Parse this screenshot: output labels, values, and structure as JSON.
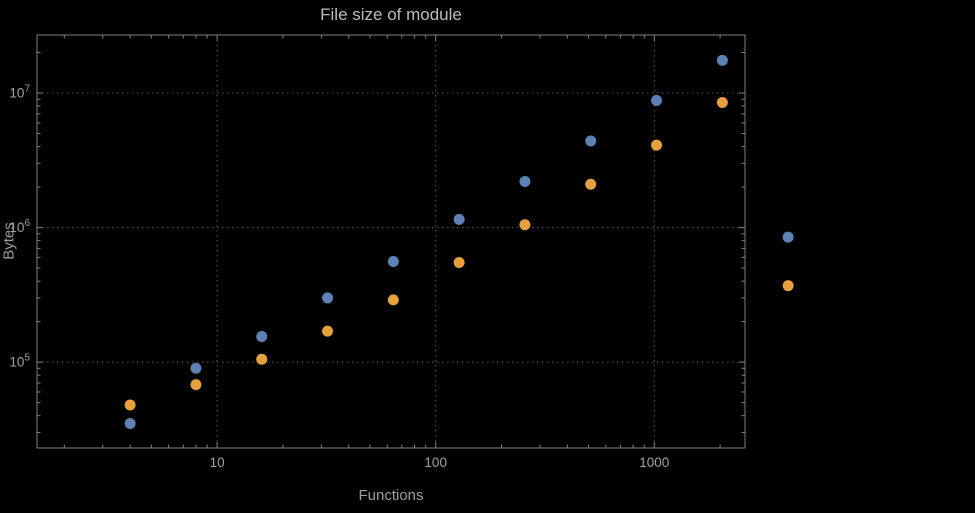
{
  "page": {
    "background_color": "#000000"
  },
  "chart_data": {
    "type": "scatter",
    "title": "File size of module",
    "xlabel": "Functions",
    "ylabel": "Bytes",
    "x_scale": "log",
    "y_scale": "log",
    "grid": "dotted",
    "legend": "none",
    "frame": true,
    "xlim": [
      1.5,
      2600
    ],
    "ylim": [
      23000,
      27000000
    ],
    "x_ticks": [
      {
        "value": 10,
        "label": "10"
      },
      {
        "value": 100,
        "label": "100"
      },
      {
        "value": 1000,
        "label": "1000"
      }
    ],
    "y_ticks": [
      {
        "value": 100000,
        "base": "10",
        "exponent": "5"
      },
      {
        "value": 1000000,
        "base": "10",
        "exponent": "6"
      },
      {
        "value": 10000000,
        "base": "10",
        "exponent": "7"
      }
    ],
    "x": [
      4,
      8,
      16,
      32,
      64,
      128,
      256,
      512,
      1024,
      2048,
      4096
    ],
    "series": [
      {
        "name": "blue",
        "color": "#5e81b5",
        "values": [
          35000,
          90000,
          155000,
          300000,
          560000,
          1150000,
          2200000,
          4400000,
          8800000,
          17500000,
          850000
        ]
      },
      {
        "name": "orange",
        "color": "#e6a13c",
        "values": [
          48000,
          68000,
          105000,
          170000,
          290000,
          550000,
          1050000,
          2100000,
          4100000,
          8500000,
          370000
        ]
      }
    ],
    "colors": {
      "grid": "#5c5c5c",
      "frame": "#808080",
      "tick_label": "#a0a0a0"
    }
  }
}
